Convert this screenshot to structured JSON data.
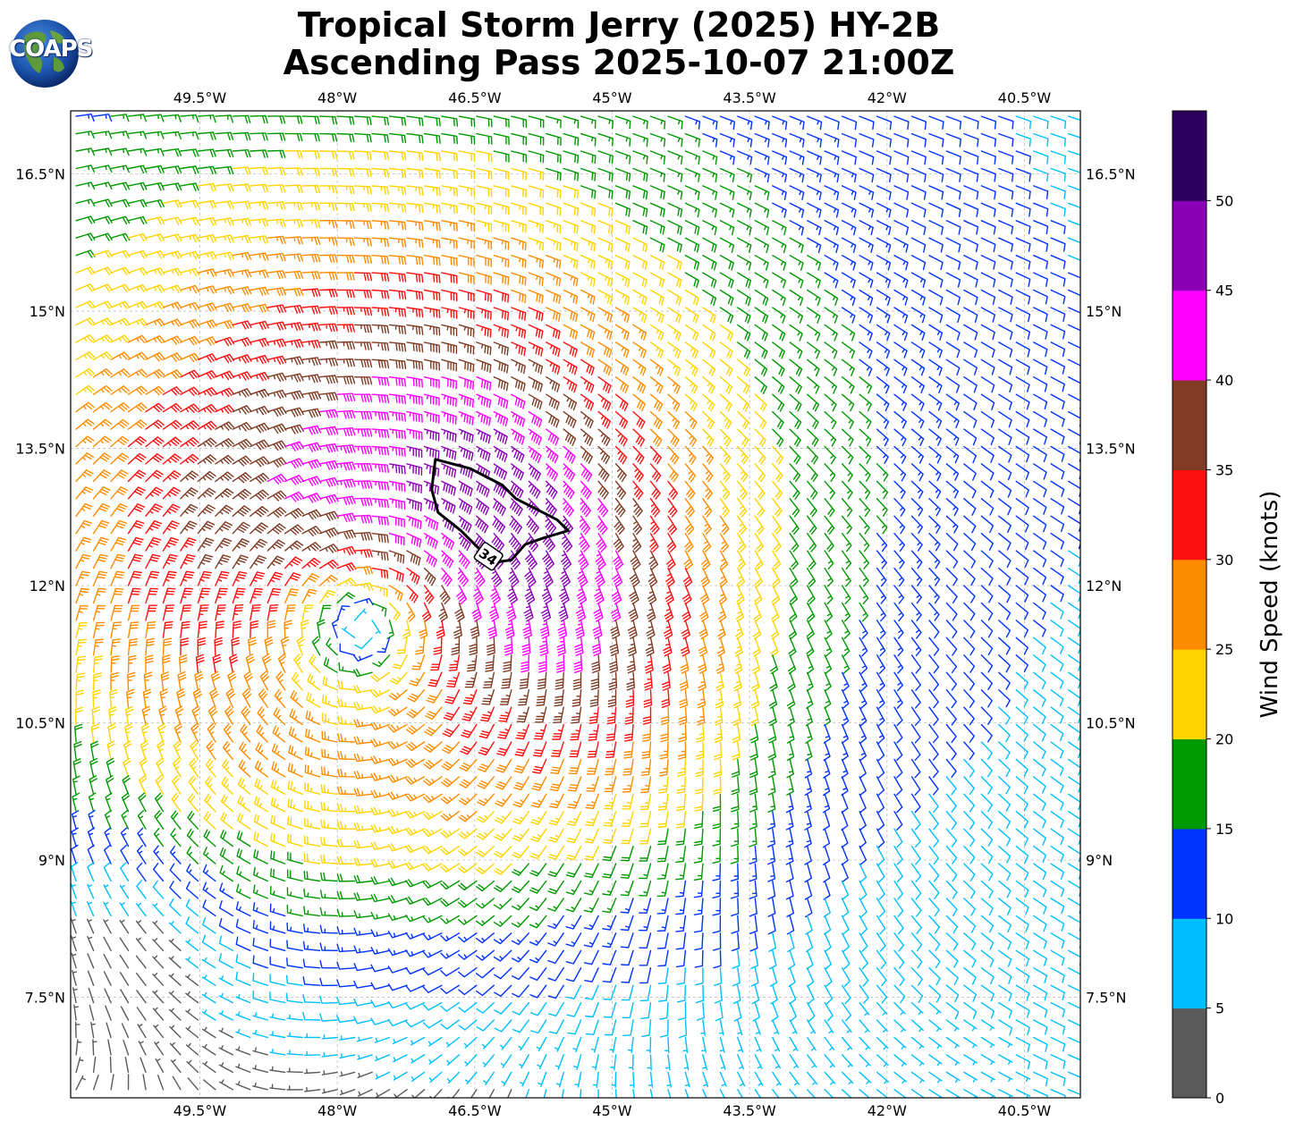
{
  "header": {
    "title_line1": "Tropical Storm Jerry (2025) HY-2B",
    "title_line2": "Ascending Pass 2025-10-07 21:00Z",
    "logo_text": "COAPS"
  },
  "map": {
    "lon_ticks": [
      "49.5°W",
      "48°W",
      "46.5°W",
      "45°W",
      "43.5°W",
      "42°W",
      "40.5°W"
    ],
    "lon_values": [
      -49.5,
      -48,
      -46.5,
      -45,
      -43.5,
      -42,
      -40.5
    ],
    "lat_ticks": [
      "16.5°N",
      "15°N",
      "13.5°N",
      "12°N",
      "10.5°N",
      "9°N",
      "7.5°N"
    ],
    "lat_values": [
      16.5,
      15,
      13.5,
      12,
      10.5,
      9,
      7.5
    ],
    "extent": {
      "lon_min": -50.91,
      "lon_max": -39.89,
      "lat_min": 6.4,
      "lat_max": 17.19
    },
    "gridlines": true,
    "contour_label": "34",
    "contour_value_knots": 34,
    "storm_center": {
      "lon": -47.7,
      "lat": 11.7
    },
    "contour_34kt_outline": [
      [
        -46.93,
        13.38
      ],
      [
        -46.55,
        13.28
      ],
      [
        -46.2,
        13.1
      ],
      [
        -46.05,
        12.95
      ],
      [
        -45.6,
        12.72
      ],
      [
        -45.48,
        12.6
      ],
      [
        -45.75,
        12.52
      ],
      [
        -45.95,
        12.45
      ],
      [
        -46.1,
        12.28
      ],
      [
        -46.3,
        12.25
      ],
      [
        -46.45,
        12.4
      ],
      [
        -46.65,
        12.6
      ],
      [
        -46.9,
        12.8
      ],
      [
        -46.97,
        13.05
      ]
    ]
  },
  "colorbar": {
    "title": "Wind Speed (knots)",
    "tick_labels": [
      "0",
      "5",
      "10",
      "15",
      "20",
      "25",
      "30",
      "35",
      "40",
      "45",
      "50"
    ],
    "bins": [
      {
        "from": 0,
        "to": 5,
        "color": "#5a5a5a"
      },
      {
        "from": 5,
        "to": 10,
        "color": "#00bfff"
      },
      {
        "from": 10,
        "to": 15,
        "color": "#0033ff"
      },
      {
        "from": 15,
        "to": 20,
        "color": "#009900"
      },
      {
        "from": 20,
        "to": 25,
        "color": "#ffd400"
      },
      {
        "from": 25,
        "to": 30,
        "color": "#ff8c00"
      },
      {
        "from": 30,
        "to": 35,
        "color": "#ff1010"
      },
      {
        "from": 35,
        "to": 40,
        "color": "#7f3b24"
      },
      {
        "from": 40,
        "to": 45,
        "color": "#ff00ff"
      },
      {
        "from": 45,
        "to": 50,
        "color": "#8b00b5"
      },
      {
        "from": 50,
        "to": 55,
        "color": "#2b005e"
      }
    ]
  }
}
